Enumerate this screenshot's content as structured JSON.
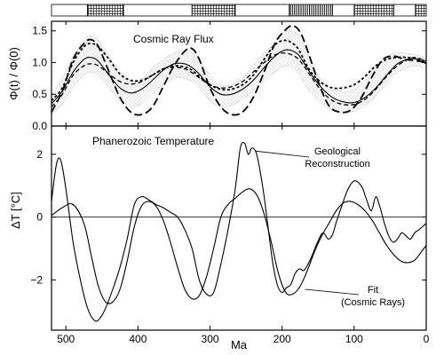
{
  "chart_data": [
    {
      "type": "line",
      "panel": "top",
      "title": "Cosmic Ray Flux",
      "ylabel": "Φ(t) / Φ(0)",
      "xlabel": "",
      "xlim": [
        520,
        0
      ],
      "ylim": [
        0,
        1.65
      ],
      "yticks": [
        0.0,
        0.5,
        1.0,
        1.5
      ],
      "series": [
        {
          "style": "solid",
          "x": [
            520,
            505,
            490,
            475,
            465,
            455,
            440,
            425,
            410,
            395,
            380,
            365,
            350,
            335,
            325,
            315,
            300,
            285,
            270,
            255,
            240,
            225,
            210,
            195,
            180,
            170,
            160,
            145,
            130,
            115,
            100,
            85,
            70,
            55,
            40,
            25,
            15,
            0
          ],
          "y": [
            0.35,
            0.55,
            0.85,
            1.05,
            1.08,
            1.02,
            0.8,
            0.6,
            0.52,
            0.58,
            0.72,
            0.88,
            0.98,
            0.98,
            0.92,
            0.82,
            0.62,
            0.5,
            0.5,
            0.58,
            0.72,
            0.92,
            1.1,
            1.2,
            1.15,
            1.0,
            0.82,
            0.6,
            0.45,
            0.38,
            0.37,
            0.45,
            0.6,
            0.8,
            0.98,
            1.05,
            1.06,
            0.98
          ]
        },
        {
          "style": "long-dash",
          "x": [
            520,
            505,
            490,
            475,
            465,
            455,
            440,
            425,
            410,
            395,
            380,
            365,
            350,
            335,
            325,
            315,
            300,
            285,
            270,
            255,
            240,
            225,
            210,
            195,
            185,
            175,
            165,
            150,
            135,
            120,
            105,
            90,
            75,
            60,
            45,
            30,
            15,
            0
          ],
          "y": [
            0.22,
            0.55,
            1.05,
            1.3,
            1.36,
            1.25,
            0.85,
            0.45,
            0.22,
            0.18,
            0.3,
            0.62,
            0.95,
            1.18,
            1.22,
            1.05,
            0.6,
            0.3,
            0.18,
            0.22,
            0.45,
            0.85,
            1.3,
            1.52,
            1.58,
            1.48,
            1.2,
            0.7,
            0.32,
            0.22,
            0.25,
            0.45,
            0.78,
            1.05,
            1.1,
            1.05,
            1.03,
            1.0
          ]
        },
        {
          "style": "short-dash",
          "x": [
            520,
            505,
            490,
            475,
            465,
            455,
            440,
            425,
            410,
            395,
            380,
            365,
            350,
            335,
            325,
            315,
            300,
            285,
            270,
            255,
            240,
            225,
            210,
            195,
            180,
            170,
            160,
            145,
            130,
            115,
            100,
            85,
            70,
            55,
            40,
            25,
            15,
            0
          ],
          "y": [
            0.4,
            0.6,
            1.0,
            1.25,
            1.3,
            1.25,
            1.05,
            0.82,
            0.72,
            0.72,
            0.8,
            0.9,
            0.95,
            0.93,
            0.88,
            0.78,
            0.65,
            0.58,
            0.58,
            0.65,
            0.8,
            1.05,
            1.28,
            1.35,
            1.25,
            1.05,
            0.85,
            0.68,
            0.6,
            0.6,
            0.65,
            0.78,
            0.95,
            1.05,
            1.08,
            1.08,
            1.06,
            1.02
          ]
        },
        {
          "style": "medium-dash",
          "x": [
            520,
            505,
            490,
            475,
            465,
            455,
            440,
            425,
            410,
            395,
            380,
            365,
            350,
            335,
            325,
            315,
            300,
            285,
            270,
            255,
            240,
            225,
            210,
            195,
            180,
            170,
            160,
            145,
            130,
            115,
            100,
            85,
            70,
            55,
            40,
            25,
            15,
            0
          ],
          "y": [
            0.3,
            0.5,
            0.8,
            0.95,
            0.98,
            0.95,
            0.82,
            0.7,
            0.66,
            0.7,
            0.8,
            0.9,
            0.93,
            0.9,
            0.84,
            0.76,
            0.65,
            0.6,
            0.62,
            0.7,
            0.85,
            1.0,
            1.12,
            1.15,
            1.08,
            0.95,
            0.78,
            0.55,
            0.4,
            0.34,
            0.34,
            0.42,
            0.58,
            0.78,
            0.95,
            1.05,
            1.08,
            1.02
          ]
        }
      ],
      "band": {
        "x": [
          520,
          505,
          490,
          475,
          465,
          455,
          440,
          425,
          410,
          395,
          380,
          365,
          350,
          335,
          325,
          315,
          300,
          285,
          270,
          255,
          240,
          225,
          210,
          195,
          185,
          175,
          165,
          150,
          135,
          120,
          105,
          90,
          75,
          60,
          45,
          30,
          15,
          0
        ],
        "upper": [
          0.5,
          0.75,
          1.1,
          1.35,
          1.42,
          1.35,
          1.1,
          0.8,
          0.7,
          0.75,
          0.9,
          1.05,
          1.15,
          1.2,
          1.15,
          1.05,
          0.8,
          0.65,
          0.65,
          0.75,
          0.95,
          1.15,
          1.35,
          1.5,
          1.5,
          1.4,
          1.15,
          0.8,
          0.6,
          0.55,
          0.55,
          0.65,
          0.85,
          1.05,
          1.15,
          1.15,
          1.12,
          1.08
        ],
        "lower": [
          0.15,
          0.35,
          0.6,
          0.8,
          0.85,
          0.8,
          0.6,
          0.4,
          0.3,
          0.35,
          0.5,
          0.65,
          0.75,
          0.75,
          0.7,
          0.6,
          0.4,
          0.3,
          0.32,
          0.42,
          0.55,
          0.7,
          0.85,
          0.95,
          0.92,
          0.8,
          0.6,
          0.4,
          0.28,
          0.22,
          0.22,
          0.28,
          0.42,
          0.6,
          0.8,
          0.9,
          0.95,
          0.9
        ]
      },
      "period_bar": [
        {
          "from": 520,
          "to": 470,
          "pattern": "white"
        },
        {
          "from": 470,
          "to": 420,
          "pattern": "crosshatch"
        },
        {
          "from": 420,
          "to": 325,
          "pattern": "white"
        },
        {
          "from": 325,
          "to": 265,
          "pattern": "crosshatch"
        },
        {
          "from": 265,
          "to": 190,
          "pattern": "white"
        },
        {
          "from": 190,
          "to": 130,
          "pattern": "vertical-stripes"
        },
        {
          "from": 130,
          "to": 100,
          "pattern": "white"
        },
        {
          "from": 100,
          "to": 45,
          "pattern": "crosshatch"
        },
        {
          "from": 45,
          "to": 15,
          "pattern": "white"
        },
        {
          "from": 15,
          "to": 0,
          "pattern": "crosshatch"
        }
      ]
    },
    {
      "type": "line",
      "panel": "bottom",
      "title": "Phanerozoic Temperature",
      "ylabel": "ΔT [°C]",
      "xlabel": "Ma",
      "xlim": [
        520,
        0
      ],
      "ylim": [
        -3.6,
        2.9
      ],
      "yticks": [
        -2,
        0,
        2
      ],
      "xticks": [
        500,
        400,
        300,
        200,
        100,
        0
      ],
      "zero_line": true,
      "series": [
        {
          "name": "Geological Reconstruction",
          "x": [
            520,
            513,
            507,
            500,
            490,
            480,
            470,
            460,
            452,
            445,
            435,
            425,
            415,
            405,
            395,
            385,
            375,
            365,
            355,
            345,
            335,
            325,
            315,
            305,
            295,
            285,
            275,
            265,
            258,
            252,
            247,
            242,
            236,
            230,
            224,
            218,
            212,
            206,
            200,
            194,
            188,
            182,
            176,
            170,
            164,
            158,
            150,
            143,
            136,
            130,
            124,
            118,
            112,
            106,
            100,
            94,
            88,
            82,
            76,
            70,
            64,
            58,
            52,
            46,
            40,
            34,
            28,
            22,
            16,
            10,
            0
          ],
          "y": [
            0.5,
            1.7,
            1.8,
            0.9,
            -0.8,
            -2.0,
            -2.9,
            -3.3,
            -3.2,
            -2.9,
            -2.3,
            -1.6,
            -0.7,
            0.4,
            0.65,
            0.55,
            0.4,
            0.3,
            0.15,
            0.0,
            -0.4,
            -1.0,
            -2.0,
            -2.45,
            -2.4,
            -1.5,
            -0.4,
            0.9,
            2.2,
            2.35,
            2.0,
            2.2,
            2.05,
            1.4,
            0.5,
            -0.6,
            -1.6,
            -2.2,
            -2.4,
            -2.25,
            -2.15,
            -1.8,
            -1.65,
            -1.7,
            -1.5,
            -1.2,
            -0.75,
            -0.5,
            -0.7,
            -0.55,
            -0.1,
            0.3,
            0.7,
            1.0,
            1.15,
            1.1,
            0.9,
            0.5,
            0.2,
            0.65,
            0.3,
            -0.2,
            -0.6,
            -0.8,
            -0.7,
            -0.5,
            -0.6,
            -0.7,
            -0.5,
            -0.4,
            -0.2
          ]
        },
        {
          "name": "Fit (Cosmic Rays)",
          "x": [
            520,
            505,
            490,
            475,
            465,
            455,
            445,
            435,
            425,
            415,
            405,
            395,
            385,
            375,
            365,
            355,
            345,
            335,
            325,
            315,
            305,
            295,
            285,
            275,
            265,
            255,
            245,
            235,
            225,
            215,
            205,
            195,
            185,
            175,
            165,
            155,
            145,
            135,
            125,
            115,
            105,
            95,
            85,
            75,
            65,
            55,
            45,
            35,
            25,
            15,
            5,
            0
          ],
          "y": [
            0.05,
            0.3,
            0.4,
            -0.2,
            -1.2,
            -2.2,
            -2.7,
            -2.7,
            -2.3,
            -1.4,
            -0.3,
            0.35,
            0.5,
            0.35,
            -0.1,
            -0.8,
            -1.6,
            -2.3,
            -2.6,
            -2.5,
            -1.9,
            -1.0,
            0.0,
            0.4,
            0.6,
            0.8,
            0.9,
            0.7,
            0.1,
            -0.8,
            -1.8,
            -2.4,
            -2.45,
            -2.2,
            -1.7,
            -1.1,
            -0.6,
            -0.2,
            0.2,
            0.45,
            0.5,
            0.4,
            0.2,
            -0.1,
            -0.5,
            -0.9,
            -1.2,
            -1.4,
            -1.45,
            -1.35,
            -1.05,
            -0.9
          ]
        }
      ],
      "annotations": [
        {
          "text_lines": [
            "Geological",
            "Reconstruction"
          ],
          "points_to": [
            240,
            2.1
          ]
        },
        {
          "text_lines": [
            "Fit",
            "(Cosmic Rays)"
          ],
          "points_to": [
            172,
            -2.3
          ]
        }
      ]
    }
  ]
}
